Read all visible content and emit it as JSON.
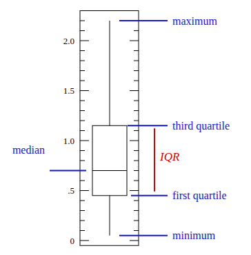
{
  "chart_data": {
    "type": "box",
    "ylim": [
      -0.05,
      2.3
    ],
    "yticks": [
      0,
      {
        "value": 0.5,
        "label": ".5"
      },
      {
        "value": 1,
        "label": "1.0"
      },
      {
        "value": 1.5,
        "label": "1.5"
      },
      {
        "value": 2,
        "label": "2.0"
      }
    ],
    "minor_yticks": [
      0.1,
      0.2,
      0.3,
      0.4,
      0.6,
      0.7,
      0.8,
      0.9,
      1.1,
      1.2,
      1.3,
      1.4,
      1.6,
      1.7,
      1.8,
      1.9,
      2.1,
      2.2
    ],
    "box": {
      "min": 0.05,
      "q1": 0.45,
      "median": 0.7,
      "q3": 1.15,
      "max": 2.2
    },
    "labels": {
      "max": "maximum",
      "q3": "third quartile",
      "median": "median",
      "q1": "first quartile",
      "min": "minimum"
    },
    "iqr_label": "IQR",
    "color": "#000000"
  }
}
